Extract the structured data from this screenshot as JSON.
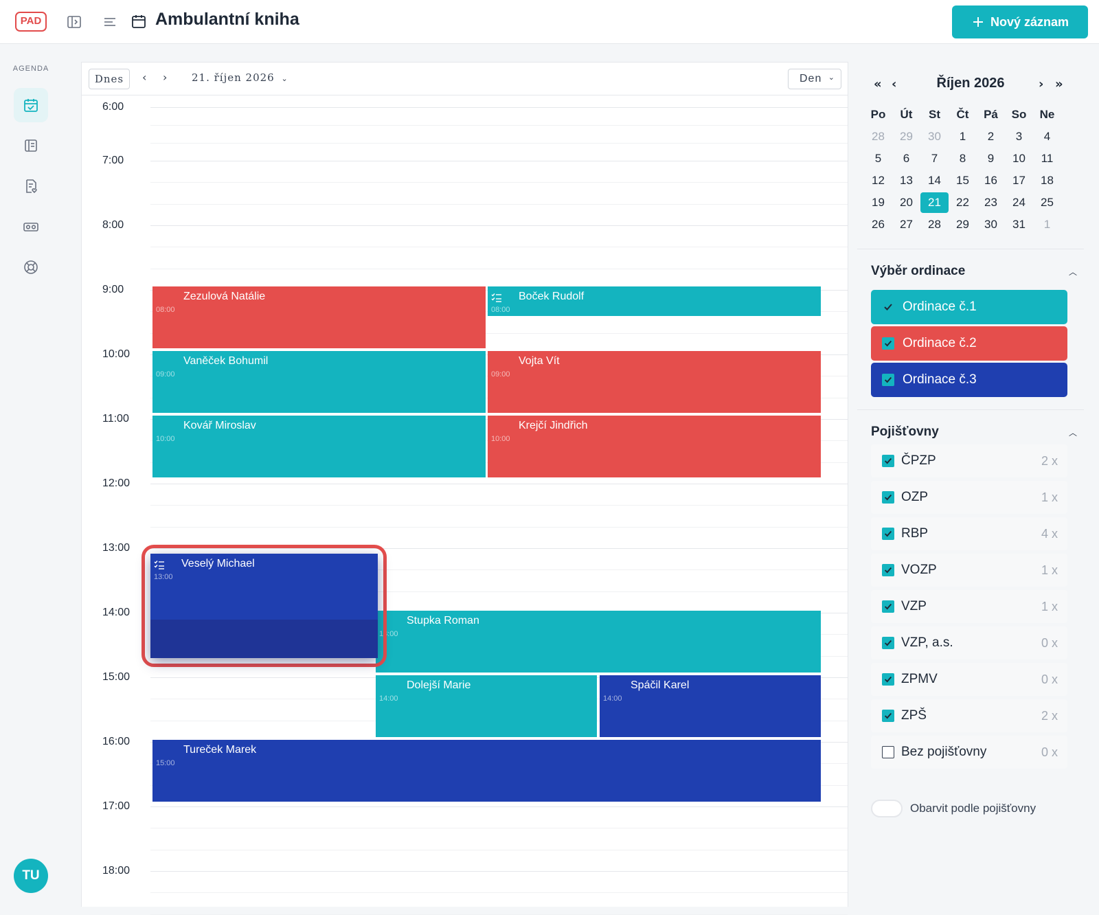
{
  "header": {
    "logo": "PAD",
    "title": "Ambulantní kniha",
    "new_button": "Nový záznam"
  },
  "sidebar": {
    "section_label": "AGENDA",
    "user_initials": "TU"
  },
  "calendar": {
    "today_button": "Dnes",
    "date": "21. říjen 2026",
    "view": "Den",
    "hours": [
      "6:00",
      "7:00",
      "8:00",
      "9:00",
      "10:00",
      "11:00",
      "12:00",
      "13:00",
      "14:00",
      "15:00",
      "16:00",
      "17:00",
      "18:00"
    ],
    "events": [
      {
        "name": "Zezulová Natálie",
        "time": "08:00",
        "color": "#e54e4c"
      },
      {
        "name": "Boček Rudolf",
        "time": "08:00",
        "color": "#14b4bf"
      },
      {
        "name": "Vaněček Bohumil",
        "time": "09:00",
        "color": "#14b4bf"
      },
      {
        "name": "Vojta Vít",
        "time": "09:00",
        "color": "#e54e4c"
      },
      {
        "name": "Kovář Miroslav",
        "time": "10:00",
        "color": "#14b4bf"
      },
      {
        "name": "Krejčí Jindřich",
        "time": "10:00",
        "color": "#e54e4c"
      },
      {
        "name": "Veselý Michael",
        "time": "13:00",
        "color": "#1f3fb0"
      },
      {
        "name": "Stupka Roman",
        "time": "13:00",
        "color": "#14b4bf"
      },
      {
        "name": "Dolejší Marie",
        "time": "14:00",
        "color": "#14b4bf"
      },
      {
        "name": "Spáčil Karel",
        "time": "14:00",
        "color": "#1f3fb0"
      },
      {
        "name": "Tureček Marek",
        "time": "15:00",
        "color": "#1f3fb0"
      }
    ]
  },
  "mini_calendar": {
    "title": "Říjen 2026",
    "prev_year": "«",
    "prev_month": "‹",
    "next_month": "›",
    "next_year": "»",
    "weekdays": [
      "Po",
      "Út",
      "St",
      "Čt",
      "Pá",
      "So",
      "Ne"
    ],
    "weeks": [
      [
        "28",
        "29",
        "30",
        "1",
        "2",
        "3",
        "4"
      ],
      [
        "5",
        "6",
        "7",
        "8",
        "9",
        "10",
        "11"
      ],
      [
        "12",
        "13",
        "14",
        "15",
        "16",
        "17",
        "18"
      ],
      [
        "19",
        "20",
        "21",
        "22",
        "23",
        "24",
        "25"
      ],
      [
        "26",
        "27",
        "28",
        "29",
        "30",
        "31",
        "1"
      ]
    ],
    "selected_day": "21"
  },
  "ordinace": {
    "title": "Výběr ordinace",
    "items": [
      {
        "label": "Ordinace č.1",
        "color": "#14b4bf",
        "checked": true
      },
      {
        "label": "Ordinace č.2",
        "color": "#e54e4c",
        "checked": true
      },
      {
        "label": "Ordinace č.3",
        "color": "#1f3fb0",
        "checked": true
      }
    ]
  },
  "pojistovny": {
    "title": "Pojišťovny",
    "items": [
      {
        "label": "ČPZP",
        "count": "2 x",
        "checked": true
      },
      {
        "label": "OZP",
        "count": "1 x",
        "checked": true
      },
      {
        "label": "RBP",
        "count": "4 x",
        "checked": true
      },
      {
        "label": "VOZP",
        "count": "1 x",
        "checked": true
      },
      {
        "label": "VZP",
        "count": "1 x",
        "checked": true
      },
      {
        "label": "VZP, a.s.",
        "count": "0 x",
        "checked": true
      },
      {
        "label": "ZPMV",
        "count": "0 x",
        "checked": true
      },
      {
        "label": "ZPŠ",
        "count": "2 x",
        "checked": true
      },
      {
        "label": "Bez pojišťovny",
        "count": "0 x",
        "checked": false
      }
    ]
  },
  "color_toggle": {
    "label": "Obarvit podle pojišťovny",
    "on": false
  }
}
